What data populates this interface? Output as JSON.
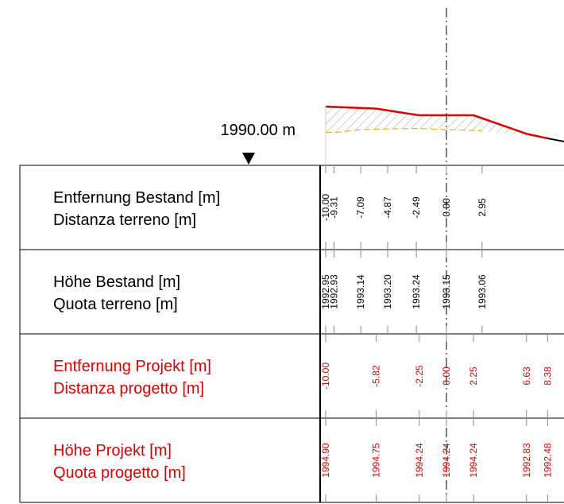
{
  "reference_label": "1990.00 m",
  "table": {
    "rows": [
      {
        "label": [
          "Entfernung Bestand [m]",
          "Distanza terreno [m]"
        ],
        "values": [
          "-10.00",
          "-9.31",
          "-7.09",
          "-4.87",
          "-2.49",
          "0.00",
          "2.95"
        ]
      },
      {
        "label": [
          "Höhe Bestand [m]",
          "Quota terreno [m]"
        ],
        "values": [
          "1992.95",
          "1992.93",
          "1993.14",
          "1993.20",
          "1993.24",
          "1993.15",
          "1993.06"
        ]
      },
      {
        "label": [
          "Entfernung Projekt [m]",
          "Distanza progetto [m]"
        ],
        "values": [
          "-10.00",
          "-5.82",
          "-2.25",
          "0.00",
          "2.25",
          "6.63",
          "8.38"
        ]
      },
      {
        "label": [
          "Höhe Projekt [m]",
          "Quota progetto [m]"
        ],
        "values": [
          "1994.90",
          "1994.75",
          "1994.24",
          "1994.24",
          "1994.24",
          "1992.83",
          "1992.48"
        ]
      }
    ]
  }
}
